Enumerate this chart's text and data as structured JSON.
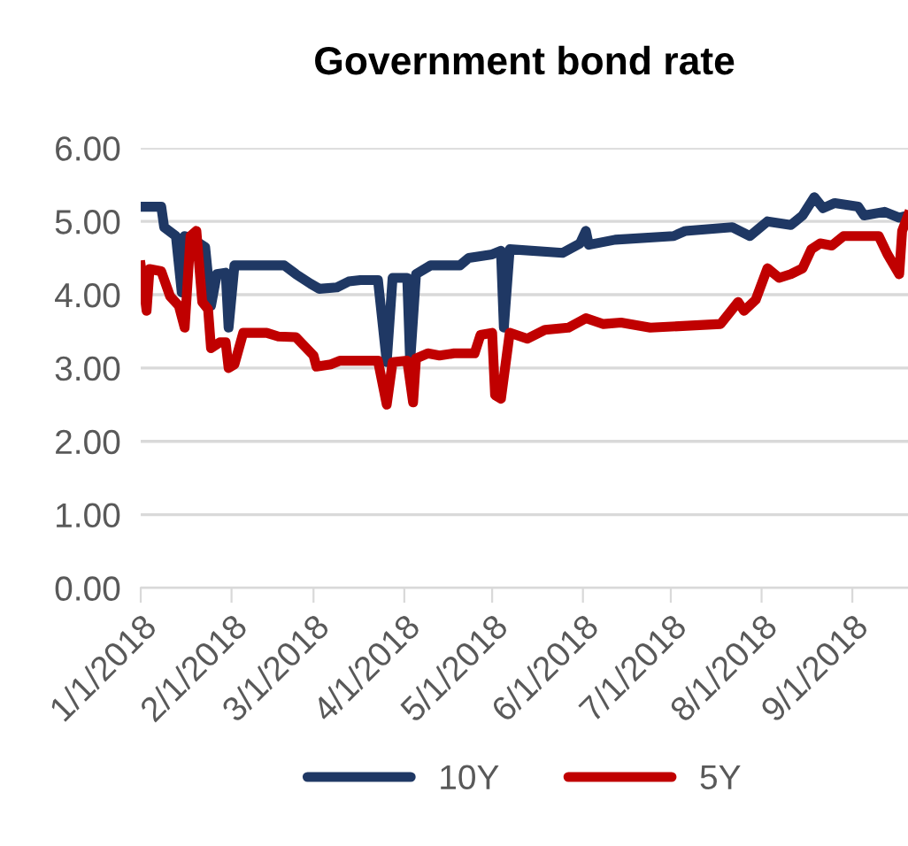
{
  "chart_data": {
    "type": "line",
    "title": "Government bond rate",
    "series": [
      {
        "name": "10Y",
        "color": "#1f3864",
        "x": [
          "2018-01-01",
          "2018-01-08",
          "2018-01-09",
          "2018-01-13",
          "2018-01-15",
          "2018-01-16",
          "2018-01-21",
          "2018-01-23",
          "2018-01-25",
          "2018-01-27",
          "2018-01-30",
          "2018-01-31",
          "2018-02-02",
          "2018-02-19",
          "2018-02-23",
          "2018-02-28",
          "2018-03-03",
          "2018-03-09",
          "2018-03-13",
          "2018-03-17",
          "2018-03-23",
          "2018-03-26",
          "2018-03-28",
          "2018-04-02",
          "2018-04-03",
          "2018-04-05",
          "2018-04-10",
          "2018-04-20",
          "2018-04-23",
          "2018-05-01",
          "2018-05-04",
          "2018-05-05",
          "2018-05-07",
          "2018-05-25",
          "2018-05-31",
          "2018-06-02",
          "2018-06-03",
          "2018-06-12",
          "2018-07-02",
          "2018-07-06",
          "2018-07-22",
          "2018-07-28",
          "2018-08-03",
          "2018-08-11",
          "2018-08-15",
          "2018-08-19",
          "2018-08-22",
          "2018-08-26",
          "2018-09-03",
          "2018-09-05",
          "2018-09-12",
          "2018-09-17",
          "2018-09-20"
        ],
        "values": [
          5.2,
          5.2,
          4.92,
          4.8,
          4.03,
          4.8,
          4.7,
          4.65,
          3.85,
          4.28,
          4.3,
          3.55,
          4.4,
          4.4,
          4.28,
          4.15,
          4.08,
          4.1,
          4.18,
          4.2,
          4.2,
          3.08,
          4.23,
          4.23,
          3.08,
          4.28,
          4.4,
          4.4,
          4.5,
          4.55,
          4.6,
          3.55,
          4.62,
          4.57,
          4.7,
          4.87,
          4.68,
          4.75,
          4.8,
          4.87,
          4.92,
          4.8,
          5.0,
          4.95,
          5.08,
          5.33,
          5.18,
          5.25,
          5.2,
          5.08,
          5.13,
          5.05,
          5.08
        ]
      },
      {
        "name": "5Y",
        "color": "#c00000",
        "x": [
          "2018-01-01",
          "2018-01-03",
          "2018-01-04",
          "2018-01-08",
          "2018-01-11",
          "2018-01-14",
          "2018-01-16",
          "2018-01-18",
          "2018-01-20",
          "2018-01-22",
          "2018-01-24",
          "2018-01-25",
          "2018-01-28",
          "2018-01-30",
          "2018-01-31",
          "2018-02-02",
          "2018-02-05",
          "2018-02-13",
          "2018-02-17",
          "2018-02-23",
          "2018-03-01",
          "2018-03-02",
          "2018-03-07",
          "2018-03-10",
          "2018-03-23",
          "2018-03-26",
          "2018-03-28",
          "2018-04-02",
          "2018-04-04",
          "2018-04-05",
          "2018-04-09",
          "2018-04-13",
          "2018-04-18",
          "2018-04-25",
          "2018-04-27",
          "2018-05-01",
          "2018-05-02",
          "2018-05-04",
          "2018-05-07",
          "2018-05-13",
          "2018-05-19",
          "2018-05-27",
          "2018-06-02",
          "2018-06-08",
          "2018-06-14",
          "2018-06-24",
          "2018-07-18",
          "2018-07-24",
          "2018-07-26",
          "2018-07-30",
          "2018-08-03",
          "2018-08-07",
          "2018-08-11",
          "2018-08-15",
          "2018-08-18",
          "2018-08-21",
          "2018-08-25",
          "2018-08-29",
          "2018-09-10",
          "2018-09-13",
          "2018-09-17",
          "2018-09-18",
          "2018-09-20"
        ],
        "values": [
          4.4,
          3.78,
          4.35,
          4.32,
          3.98,
          3.85,
          3.55,
          4.8,
          4.87,
          3.9,
          3.8,
          3.27,
          3.35,
          3.35,
          3.0,
          3.05,
          3.48,
          3.48,
          3.43,
          3.42,
          3.17,
          3.02,
          3.05,
          3.1,
          3.1,
          2.5,
          3.08,
          3.1,
          2.53,
          3.13,
          3.2,
          3.17,
          3.2,
          3.2,
          3.45,
          3.48,
          2.63,
          2.58,
          3.48,
          3.4,
          3.52,
          3.55,
          3.68,
          3.6,
          3.62,
          3.55,
          3.6,
          3.9,
          3.78,
          3.93,
          4.36,
          4.23,
          4.28,
          4.36,
          4.62,
          4.7,
          4.67,
          4.8,
          4.8,
          4.55,
          4.28,
          4.87,
          5.08
        ]
      }
    ],
    "xlim": [
      "2018-01-01",
      "2018-09-20"
    ],
    "xticks": [
      {
        "value": "2018-01-01",
        "label": "1/1/2018"
      },
      {
        "value": "2018-02-01",
        "label": "2/1/2018"
      },
      {
        "value": "2018-03-01",
        "label": "3/1/2018"
      },
      {
        "value": "2018-04-01",
        "label": "4/1/2018"
      },
      {
        "value": "2018-05-01",
        "label": "5/1/2018"
      },
      {
        "value": "2018-06-01",
        "label": "6/1/2018"
      },
      {
        "value": "2018-07-01",
        "label": "7/1/2018"
      },
      {
        "value": "2018-08-01",
        "label": "8/1/2018"
      },
      {
        "value": "2018-09-01",
        "label": "9/1/2018"
      }
    ],
    "ylim": [
      0,
      6
    ],
    "yticks": [
      {
        "value": 0,
        "label": "0.00"
      },
      {
        "value": 1,
        "label": "1.00"
      },
      {
        "value": 2,
        "label": "2.00"
      },
      {
        "value": 3,
        "label": "3.00"
      },
      {
        "value": 4,
        "label": "4.00"
      },
      {
        "value": 5,
        "label": "5.00"
      },
      {
        "value": 6,
        "label": "6.00"
      }
    ],
    "grid": "y",
    "legend": "bottom",
    "marker": "none",
    "line_style": "solid"
  }
}
